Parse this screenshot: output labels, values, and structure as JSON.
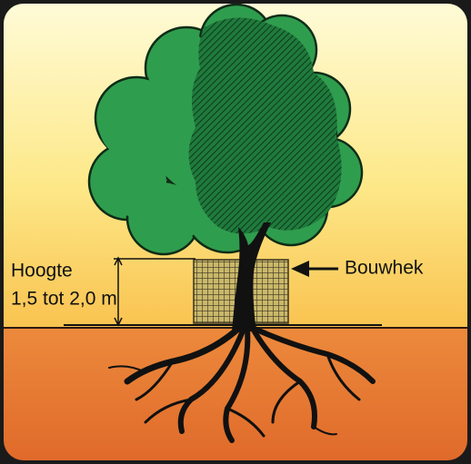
{
  "labels": {
    "height_title": "Hoogte",
    "height_value": "1,5 tot 2,0 m",
    "fence": "Bouwhek"
  }
}
